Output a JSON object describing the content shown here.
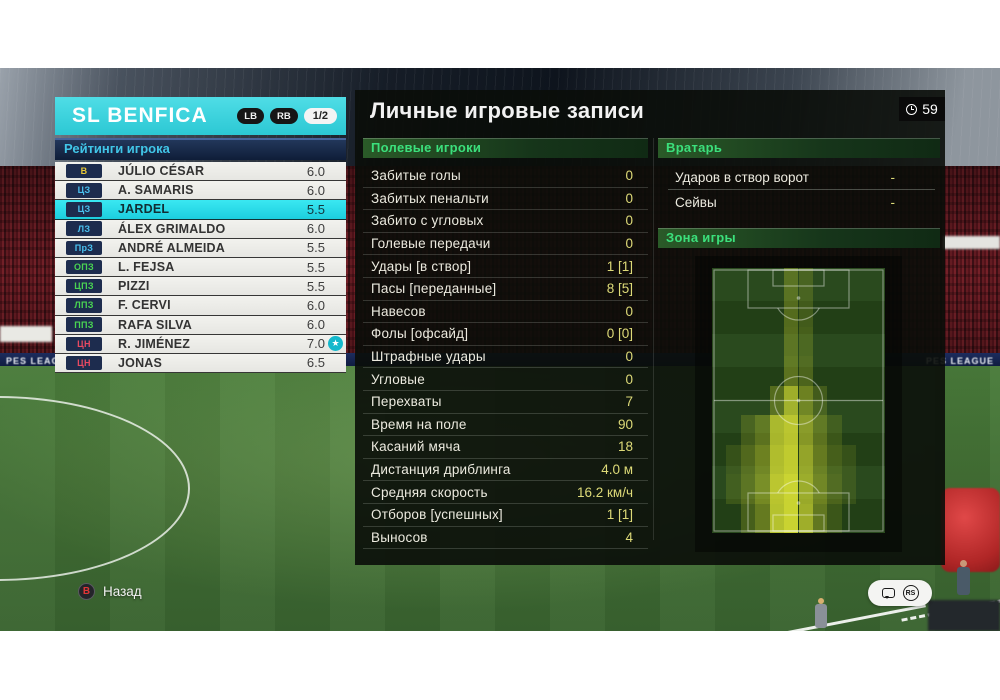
{
  "team_panel": {
    "team_name": "SL BENFICA",
    "nav_buttons": {
      "prev": "LB",
      "next": "RB"
    },
    "page_indicator": "1/2",
    "section_title": "Рейтинги игрока",
    "players": [
      {
        "pos": "В",
        "pos_color": "#e8c838",
        "name": "JÚLIO CÉSAR",
        "rating": "6.0",
        "selected": false,
        "star": false
      },
      {
        "pos": "ЦЗ",
        "pos_color": "#49c0ee",
        "name": "A. SAMARIS",
        "rating": "6.0",
        "selected": false,
        "star": false
      },
      {
        "pos": "ЦЗ",
        "pos_color": "#49c0ee",
        "name": "JARDEL",
        "rating": "5.5",
        "selected": true,
        "star": false
      },
      {
        "pos": "ЛЗ",
        "pos_color": "#49c0ee",
        "name": "ÁLEX GRIMALDO",
        "rating": "6.0",
        "selected": false,
        "star": false
      },
      {
        "pos": "ПрЗ",
        "pos_color": "#49c0ee",
        "name": "ANDRÉ ALMEIDA",
        "rating": "5.5",
        "selected": false,
        "star": false
      },
      {
        "pos": "ОПЗ",
        "pos_color": "#4ad452",
        "name": "L. FEJSA",
        "rating": "5.5",
        "selected": false,
        "star": false
      },
      {
        "pos": "ЦПЗ",
        "pos_color": "#4ad452",
        "name": "PIZZI",
        "rating": "5.5",
        "selected": false,
        "star": false
      },
      {
        "pos": "ЛПЗ",
        "pos_color": "#4ad452",
        "name": "F. CERVI",
        "rating": "6.0",
        "selected": false,
        "star": false
      },
      {
        "pos": "ППЗ",
        "pos_color": "#4ad452",
        "name": "RAFA SILVA",
        "rating": "6.0",
        "selected": false,
        "star": false
      },
      {
        "pos": "ЦН",
        "pos_color": "#e84a62",
        "name": "R. JIMÉNEZ",
        "rating": "7.0",
        "selected": false,
        "star": true
      },
      {
        "pos": "ЦН",
        "pos_color": "#e84a62",
        "name": "JONAS",
        "rating": "6.5",
        "selected": false,
        "star": false
      }
    ]
  },
  "main": {
    "title": "Личные игровые записи",
    "clock": {
      "value": "59"
    },
    "outfield": {
      "header": "Полевые игроки",
      "rows": [
        [
          "Забитые голы",
          "0"
        ],
        [
          "Забитых пенальти",
          "0"
        ],
        [
          "Забито с угловых",
          "0"
        ],
        [
          "Голевые передачи",
          "0"
        ],
        [
          "Удары [в створ]",
          "1 [1]"
        ],
        [
          "Пасы [переданные]",
          "8 [5]"
        ],
        [
          "Навесов",
          "0"
        ],
        [
          "Фолы [офсайд]",
          "0 [0]"
        ],
        [
          "Штрафные удары",
          "0"
        ],
        [
          "Угловые",
          "0"
        ],
        [
          "Перехваты",
          "7"
        ],
        [
          "Время на поле",
          "90"
        ],
        [
          "Касаний мяча",
          "18"
        ],
        [
          "Дистанция дриблинга",
          "4.0 м"
        ],
        [
          "Средняя скорость",
          "16.2 км/ч"
        ],
        [
          "Отборов [успешных]",
          "1 [1]"
        ],
        [
          "Выносов",
          "4"
        ]
      ]
    },
    "goalkeeper": {
      "header": "Вратарь",
      "rows": [
        [
          "Ударов в створ ворот",
          "-"
        ],
        [
          "Сейвы",
          "-"
        ]
      ]
    },
    "zone": {
      "header": "Зона игры"
    }
  },
  "chart_data": {
    "type": "heatmap",
    "title": "Зона игры",
    "description": "Player activity zones on a vertical football pitch; brighter yellow = more time spent",
    "grid_cols": 12,
    "grid_rows": 9,
    "low_color": "#234018",
    "high_color": "#e2e83c",
    "values": [
      [
        0,
        0,
        0,
        0,
        0,
        0.3,
        0.2,
        0,
        0,
        0,
        0,
        0
      ],
      [
        0,
        0,
        0,
        0,
        0,
        0.3,
        0.2,
        0,
        0,
        0,
        0,
        0
      ],
      [
        0,
        0,
        0,
        0,
        0,
        0.32,
        0.22,
        0,
        0,
        0,
        0,
        0
      ],
      [
        0,
        0,
        0,
        0,
        0,
        0.35,
        0.25,
        0,
        0,
        0,
        0,
        0
      ],
      [
        0,
        0,
        0,
        0,
        0.3,
        0.75,
        0.45,
        0.2,
        0,
        0,
        0,
        0
      ],
      [
        0,
        0,
        0.2,
        0.35,
        0.8,
        0.9,
        0.6,
        0.35,
        0.15,
        0,
        0,
        0
      ],
      [
        0,
        0.12,
        0.28,
        0.45,
        0.85,
        0.95,
        0.68,
        0.4,
        0.22,
        0.12,
        0,
        0
      ],
      [
        0,
        0.15,
        0.32,
        0.5,
        0.9,
        1.0,
        0.72,
        0.45,
        0.25,
        0.12,
        0,
        0
      ],
      [
        0,
        0,
        0.22,
        0.4,
        0.88,
        1.0,
        0.75,
        0.38,
        0.15,
        0,
        0,
        0
      ]
    ]
  },
  "footer": {
    "back_button": "B",
    "back_label": "Назад",
    "stick_label": "RS"
  },
  "stadium": {
    "ad_text": "PES LEAGUE"
  },
  "colors": {
    "accent_cyan": "#2fd6e2",
    "selected_row": "#2ee4f0",
    "value_yellow": "#ddda78",
    "header_green": "#3be07c",
    "badge_navy": "#1d2c4e",
    "crowd_red": "#6a1a22"
  }
}
